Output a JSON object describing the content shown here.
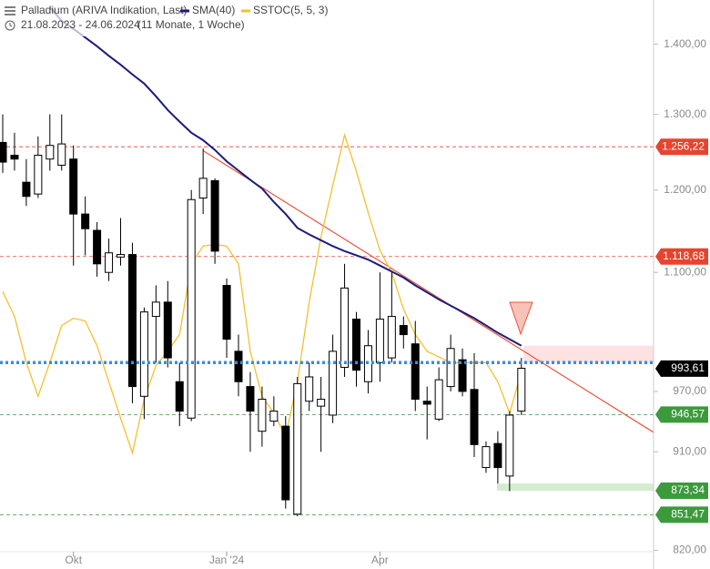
{
  "chart_data": {
    "type": "candlestick",
    "title": "Palladium (ARIVA Indikation, Last)",
    "date_range": "21.08.2023 - 24.06.2024",
    "period": "(11 Monate, 1 Woche)",
    "log_scale": true,
    "ylim": [
      804,
      1467
    ],
    "yticks": [
      {
        "value": 820,
        "label": "820,00"
      },
      {
        "value": 910,
        "label": "910,00"
      },
      {
        "value": 970,
        "label": "970,00"
      },
      {
        "value": 1100,
        "label": "1.100,00"
      },
      {
        "value": 1200,
        "label": "1.200,00"
      },
      {
        "value": 1300,
        "label": "1.300,00"
      },
      {
        "value": 1400,
        "label": "1.400,00"
      }
    ],
    "categories": [
      null,
      null,
      null,
      null,
      null,
      null,
      "Okt",
      null,
      null,
      null,
      null,
      null,
      null,
      null,
      null,
      null,
      null,
      null,
      null,
      "Jan '24",
      null,
      null,
      null,
      null,
      null,
      null,
      null,
      null,
      null,
      null,
      null,
      null,
      "Apr",
      null,
      null,
      null,
      null,
      null,
      null,
      null,
      null,
      null,
      null,
      null,
      null
    ],
    "up_color": "#ffffff",
    "down_color": "#000000",
    "ohlc": [
      [
        1262,
        1300,
        1222,
        1236
      ],
      [
        1245,
        1275,
        1225,
        1240
      ],
      [
        1210,
        1240,
        1180,
        1192
      ],
      [
        1195,
        1270,
        1190,
        1245
      ],
      [
        1240,
        1300,
        1225,
        1258
      ],
      [
        1232,
        1300,
        1225,
        1260
      ],
      [
        1240,
        1258,
        1108,
        1170
      ],
      [
        1170,
        1192,
        1120,
        1152
      ],
      [
        1150,
        1160,
        1095,
        1110
      ],
      [
        1100,
        1140,
        1090,
        1123
      ],
      [
        1118,
        1165,
        1108,
        1121
      ],
      [
        1121,
        1135,
        958,
        975
      ],
      [
        965,
        1060,
        942,
        1055
      ],
      [
        1050,
        1085,
        1000,
        1066
      ],
      [
        1066,
        1090,
        995,
        1005
      ],
      [
        980,
        1000,
        935,
        950
      ],
      [
        943,
        1200,
        940,
        1188
      ],
      [
        1190,
        1254,
        1170,
        1215
      ],
      [
        1212,
        1215,
        1110,
        1125
      ],
      [
        1085,
        1093,
        1005,
        1025
      ],
      [
        1012,
        1030,
        965,
        980
      ],
      [
        975,
        990,
        910,
        950
      ],
      [
        930,
        975,
        915,
        962
      ],
      [
        940,
        965,
        935,
        950
      ],
      [
        935,
        945,
        857,
        865
      ],
      [
        852,
        985,
        850,
        978
      ],
      [
        960,
        1000,
        950,
        985
      ],
      [
        955,
        985,
        910,
        962
      ],
      [
        946,
        1030,
        938,
        1012
      ],
      [
        995,
        1110,
        985,
        1082
      ],
      [
        1047,
        1055,
        975,
        992
      ],
      [
        980,
        1035,
        968,
        1018
      ],
      [
        1000,
        1100,
        980,
        1047
      ],
      [
        1005,
        1100,
        1000,
        1050
      ],
      [
        1040,
        1050,
        1015,
        1030
      ],
      [
        1020,
        1045,
        950,
        962
      ],
      [
        960,
        975,
        922,
        957
      ],
      [
        942,
        995,
        940,
        982
      ],
      [
        975,
        1030,
        970,
        1015
      ],
      [
        1003,
        1015,
        965,
        970
      ],
      [
        972,
        1010,
        905,
        917
      ],
      [
        895,
        920,
        890,
        915
      ],
      [
        918,
        930,
        880,
        895
      ],
      [
        887,
        950,
        873,
        946
      ],
      [
        950,
        1005,
        946,
        994
      ]
    ],
    "series": [
      {
        "name": "SMA(40)",
        "color": "#1c1c78",
        "values": [
          null,
          null,
          null,
          null,
          1456,
          1435,
          1423,
          1410,
          1397,
          1383,
          1370,
          1356,
          1343,
          1325,
          1306,
          1290,
          1275,
          1265,
          1252,
          1237,
          1225,
          1213,
          1202,
          1185,
          1170,
          1153,
          1145,
          1138,
          1131,
          1125,
          1120,
          1115,
          1108,
          1101,
          1094,
          1085,
          1077,
          1069,
          1062,
          1055,
          1048,
          1040,
          1032,
          1025,
          1018
        ]
      },
      {
        "name": "SSTOC(5, 5, 3)",
        "color": "#f2c12e",
        "values": [
          1078,
          1050,
          1000,
          965,
          1000,
          1040,
          1048,
          1045,
          1018,
          980,
          943,
          909,
          962,
          997,
          1012,
          1030,
          1110,
          1131,
          1133,
          1131,
          1110,
          1012,
          965,
          948,
          925,
          980,
          1066,
          1142,
          1206,
          1272,
          1224,
          1172,
          1126,
          1100,
          1058,
          1030,
          1012,
          1006,
          1000,
          1000,
          1000,
          1000,
          980,
          948,
          990
        ]
      }
    ],
    "trendline": {
      "color": "#e8553c",
      "from": [
        17,
        1251
      ],
      "to": [
        55.2,
        929
      ]
    },
    "alert_level": {
      "value": 1000,
      "color": "#2f8fef"
    },
    "zones": [
      {
        "from": 1000,
        "to": 1018,
        "color": "#fde2e2"
      },
      {
        "from": 873.34,
        "to": 880,
        "color": "#d4ecd0"
      }
    ],
    "levels": [
      {
        "value": 1256.22,
        "label": "1.256,22",
        "color": "#e8432e",
        "dashed": true
      },
      {
        "value": 1118.68,
        "label": "1.118,68",
        "color": "#e8432e",
        "dashed": true
      },
      {
        "value": 993.61,
        "label": "993,61",
        "color": "#000000",
        "dashed": false
      },
      {
        "value": 946.57,
        "label": "946,57",
        "color": "#3c9a3c",
        "dashed": true
      },
      {
        "value": 873.34,
        "label": "873,34",
        "color": "#3c9a3c",
        "dashed": false
      },
      {
        "value": 851.47,
        "label": "851,47",
        "color": "#3c9a3c",
        "dashed": true
      }
    ]
  }
}
